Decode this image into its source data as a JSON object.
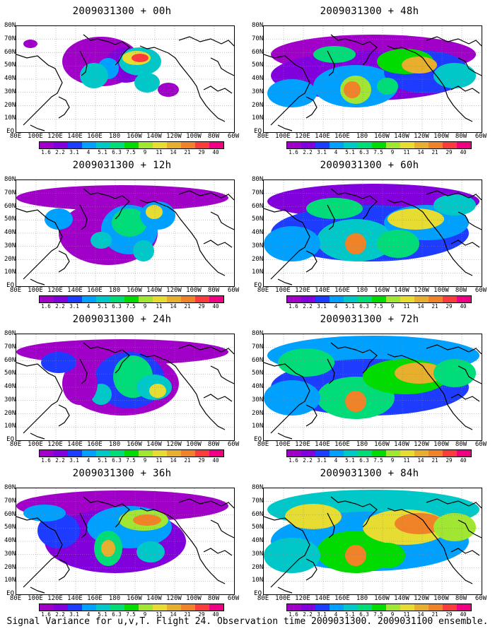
{
  "figure_title": "",
  "footer": "Signal Variance for u,v,T. Flight 24. Observation time 2009031300. 2009031100 ensemble.",
  "panels": [
    {
      "title": "2009031300 + 00h",
      "lead_hours": 0
    },
    {
      "title": "2009031300 + 48h",
      "lead_hours": 48
    },
    {
      "title": "2009031300 + 12h",
      "lead_hours": 12
    },
    {
      "title": "2009031300 + 60h",
      "lead_hours": 60
    },
    {
      "title": "2009031300 + 24h",
      "lead_hours": 24
    },
    {
      "title": "2009031300 + 72h",
      "lead_hours": 72
    },
    {
      "title": "2009031300 + 36h",
      "lead_hours": 36
    },
    {
      "title": "2009031300 + 84h",
      "lead_hours": 84
    }
  ],
  "x_axis_labels": [
    "80E",
    "100E",
    "120E",
    "140E",
    "160E",
    "180",
    "160W",
    "140W",
    "120W",
    "100W",
    "80W",
    "60W"
  ],
  "y_axis_labels": [
    "EQ",
    "10N",
    "20N",
    "30N",
    "40N",
    "50N",
    "60N",
    "70N",
    "80N"
  ],
  "colorbar": {
    "labels": [
      "1.6",
      "2.2",
      "3.1",
      "4",
      "5.1",
      "6.3",
      "7.5",
      "9",
      "11",
      "14",
      "21",
      "29",
      "40"
    ],
    "colors": [
      "#a000c8",
      "#8200dc",
      "#1e3cff",
      "#00a0ff",
      "#00c8c8",
      "#00dc78",
      "#00dc00",
      "#a0e632",
      "#e6dc32",
      "#e6af2d",
      "#f08228",
      "#fa3c3c",
      "#f00082"
    ]
  }
}
